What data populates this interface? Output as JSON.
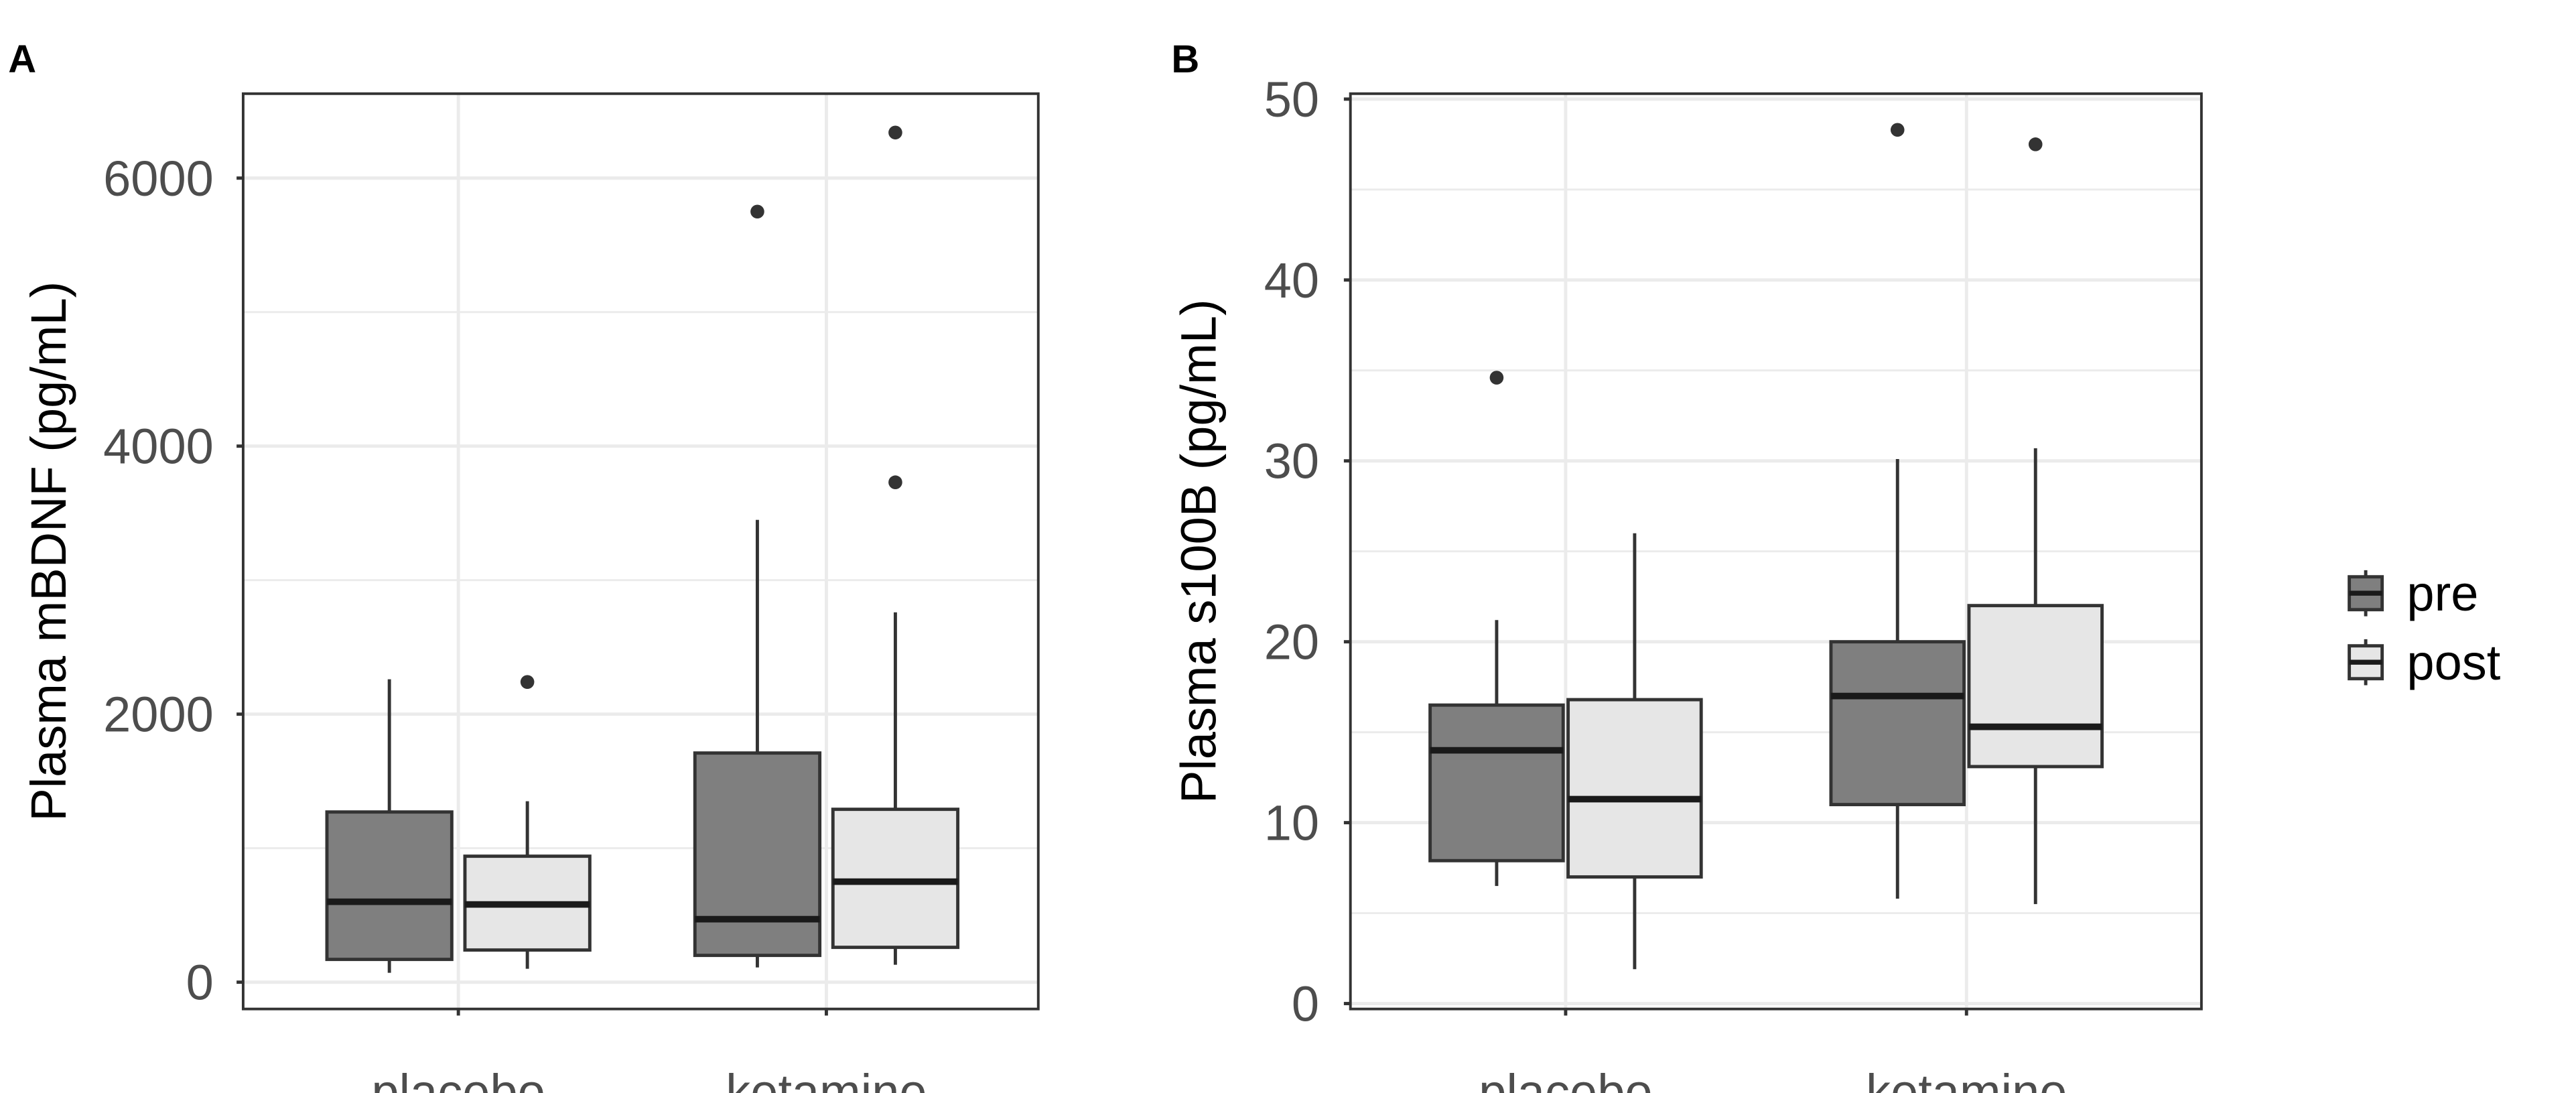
{
  "colors": {
    "pre_fill": "#7f7f7f",
    "post_fill": "#e6e6e6",
    "box_stroke": "#333333",
    "outlier": "#333333",
    "grid": "#ebebeb",
    "panel_border": "#333333"
  },
  "legend": {
    "entries": [
      {
        "name": "pre",
        "fill": "#7f7f7f"
      },
      {
        "name": "post",
        "fill": "#e6e6e6"
      }
    ]
  },
  "chart_data": [
    {
      "panel": "A",
      "type": "boxplot",
      "title": "",
      "xlabel": "",
      "ylabel": "Plasma mBDNF (pg/mL)",
      "ylim": [
        -200,
        6630
      ],
      "yticks": [
        0,
        2000,
        4000,
        6000
      ],
      "ytick_labels": [
        "0",
        "2000",
        "4000",
        "6000"
      ],
      "categories": [
        "placebo",
        "ketamine"
      ],
      "grid": true,
      "legend_position": "right",
      "series": [
        {
          "name": "pre",
          "boxes": [
            {
              "category": "placebo",
              "whisker_low": 70,
              "q1": 170,
              "median": 600,
              "q3": 1270,
              "whisker_high": 2260,
              "outliers": []
            },
            {
              "category": "ketamine",
              "whisker_low": 110,
              "q1": 200,
              "median": 470,
              "q3": 1710,
              "whisker_high": 3450,
              "outliers": [
                5750
              ]
            }
          ]
        },
        {
          "name": "post",
          "boxes": [
            {
              "category": "placebo",
              "whisker_low": 100,
              "q1": 240,
              "median": 580,
              "q3": 940,
              "whisker_high": 1350,
              "outliers": [
                2240
              ]
            },
            {
              "category": "ketamine",
              "whisker_low": 130,
              "q1": 260,
              "median": 750,
              "q3": 1290,
              "whisker_high": 2760,
              "outliers": [
                3730,
                6340
              ]
            }
          ]
        }
      ]
    },
    {
      "panel": "B",
      "type": "boxplot",
      "title": "",
      "xlabel": "",
      "ylabel": "Plasma s100B (pg/mL)",
      "ylim": [
        -0.3,
        50.3
      ],
      "yticks": [
        0,
        10,
        20,
        30,
        40,
        50
      ],
      "ytick_labels": [
        "0",
        "10",
        "20",
        "30",
        "40",
        "50"
      ],
      "categories": [
        "placebo",
        "ketamine"
      ],
      "grid": true,
      "legend_position": "right",
      "series": [
        {
          "name": "pre",
          "boxes": [
            {
              "category": "placebo",
              "whisker_low": 6.5,
              "q1": 7.9,
              "median": 14.0,
              "q3": 16.5,
              "whisker_high": 21.2,
              "outliers": [
                34.6
              ]
            },
            {
              "category": "ketamine",
              "whisker_low": 5.8,
              "q1": 11.0,
              "median": 17.0,
              "q3": 20.0,
              "whisker_high": 30.1,
              "outliers": [
                48.3
              ]
            }
          ]
        },
        {
          "name": "post",
          "boxes": [
            {
              "category": "placebo",
              "whisker_low": 1.9,
              "q1": 7.0,
              "median": 11.3,
              "q3": 16.8,
              "whisker_high": 26.0,
              "outliers": []
            },
            {
              "category": "ketamine",
              "whisker_low": 5.5,
              "q1": 13.1,
              "median": 15.3,
              "q3": 22.0,
              "whisker_high": 30.7,
              "outliers": [
                47.5
              ]
            }
          ]
        }
      ]
    }
  ]
}
